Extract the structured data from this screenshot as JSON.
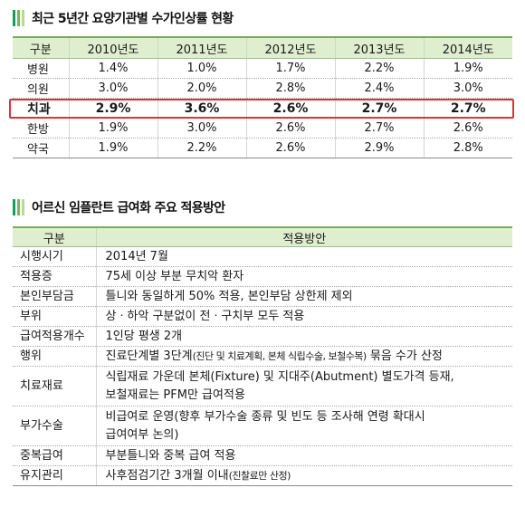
{
  "section1": {
    "title": "최근 5년간 요양기관별 수가인상률 현황",
    "columns": [
      "구분",
      "2010년도",
      "2011년도",
      "2012년도",
      "2013년도",
      "2014년도"
    ],
    "rows": [
      {
        "label": "병원",
        "values": [
          "1.4%",
          "1.0%",
          "1.7%",
          "2.2%",
          "1.9%"
        ]
      },
      {
        "label": "의원",
        "values": [
          "3.0%",
          "2.0%",
          "2.8%",
          "2.4%",
          "3.0%"
        ]
      },
      {
        "label": "치과",
        "values": [
          "2.9%",
          "3.6%",
          "2.6%",
          "2.7%",
          "2.7%"
        ]
      },
      {
        "label": "한방",
        "values": [
          "1.9%",
          "3.0%",
          "2.6%",
          "2.7%",
          "2.6%"
        ]
      },
      {
        "label": "약국",
        "values": [
          "1.9%",
          "2.2%",
          "2.6%",
          "2.9%",
          "2.8%"
        ]
      }
    ],
    "highlight_color": "#e0303f"
  },
  "section2": {
    "title": "어르신 임플란트 급여화 주요 적용방안",
    "columns": [
      "구분",
      "적용방안"
    ],
    "rows": [
      {
        "label": "시행시기",
        "value": "2014년 7월"
      },
      {
        "label": "적용증",
        "value": "75세 이상 부분 무치악 환자"
      },
      {
        "label": "본인부담금",
        "value": "틀니와 동일하게 50% 적용, 본인부담 상한제 제외"
      },
      {
        "label": "부위",
        "value": "상ㆍ하악 구분없이 전ㆍ구치부 모두 적용"
      },
      {
        "label": "급여적용개수",
        "value": "1인당 평생 2개"
      },
      {
        "label": "행위",
        "value_a": "진료단계별 3단계",
        "value_small": "(진단 및 치료계획, 본체 식립수술, 보철수복)",
        "value_b": " 묶음 수가 산정"
      },
      {
        "label": "치료재료",
        "line1": "식립재료 가운데 본체(Fixture) 및 지대주(Abutment) 별도가격 등재,",
        "line2": "보철재료는 PFM만 급여적용"
      },
      {
        "label": "부가수술",
        "line1": "비급여로 운영(향후 부가수술 종류 및 빈도 등 조사해 연령 확대시",
        "line2": "급여여부 논의)"
      },
      {
        "label": "중복급여",
        "value": "부분틀니와 중복 급여 적용"
      },
      {
        "label": "유지관리",
        "value_a": "사후점검기간 3개월 이내",
        "value_small": "(진찰료만 산정)"
      }
    ]
  },
  "colors": {
    "header_bg": "#dfeecf",
    "accent_green": "#1a9a5c"
  }
}
